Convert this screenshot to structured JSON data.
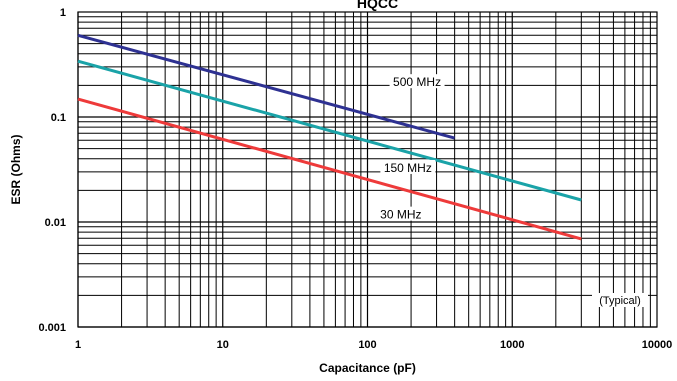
{
  "chart_data": {
    "type": "line",
    "title": "HQCC",
    "xlabel": "Capacitance (pF)",
    "ylabel": "ESR (Ohms)",
    "x_scale": "log",
    "y_scale": "log",
    "xlim": [
      1,
      10000
    ],
    "ylim": [
      0.001,
      1
    ],
    "x_ticks": [
      "1",
      "10",
      "100",
      "1000",
      "10000"
    ],
    "y_ticks": [
      "1",
      "0.1",
      "0.01",
      "0.001"
    ],
    "grid": true,
    "annotation": "(Typical)",
    "series": [
      {
        "name": "500 MHz",
        "color": "#2e3192",
        "x": [
          1,
          400
        ],
        "y": [
          0.6,
          0.063
        ]
      },
      {
        "name": "150 MHz",
        "color": "#1aa3a8",
        "x": [
          1,
          3000
        ],
        "y": [
          0.34,
          0.0162
        ]
      },
      {
        "name": "30 MHz",
        "color": "#ee3a3a",
        "x": [
          1,
          3000
        ],
        "y": [
          0.148,
          0.0069
        ]
      }
    ],
    "labels": [
      {
        "series": "500 MHz",
        "x": 220,
        "y": 0.21
      },
      {
        "series": "150 MHz",
        "x": 190,
        "y": 0.032
      },
      {
        "series": "30 MHz",
        "x": 170,
        "y": 0.0115
      }
    ]
  }
}
